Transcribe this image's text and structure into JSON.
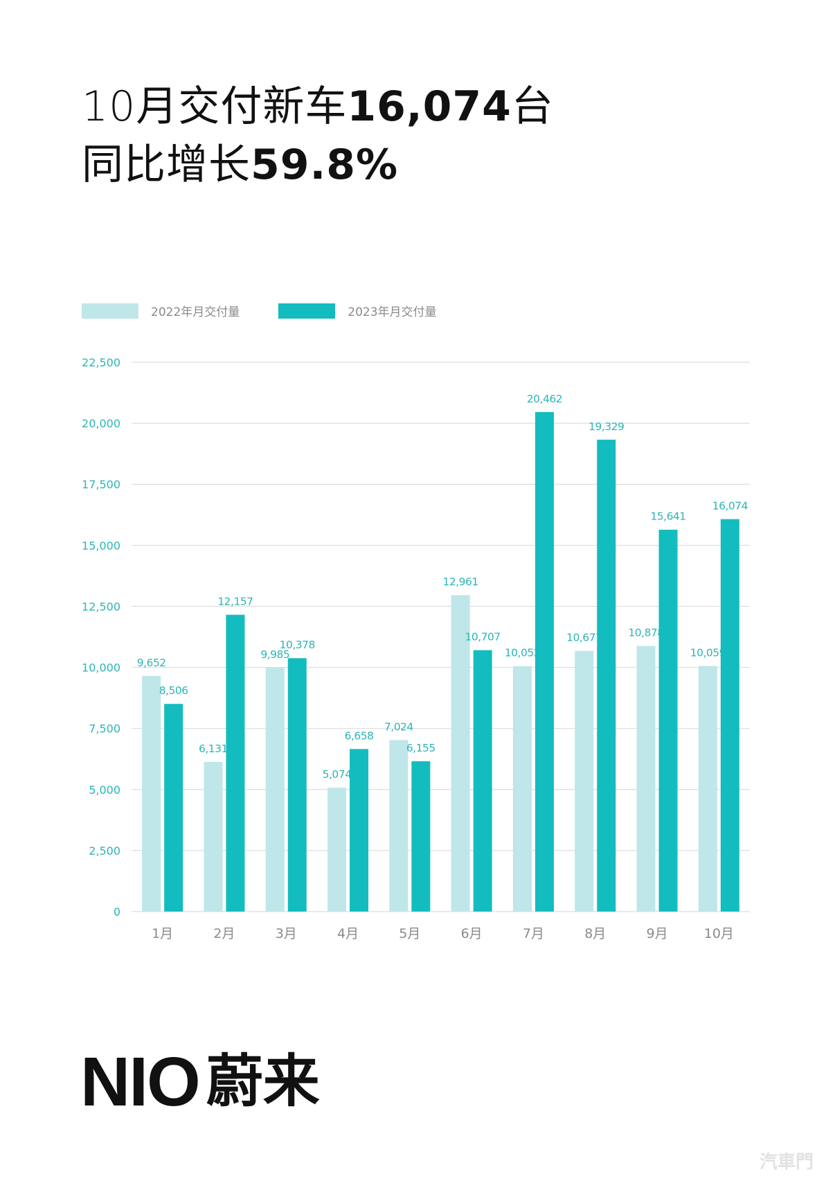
{
  "headline": {
    "line1_prefix": "10月交付新车",
    "line1_number": "16,074",
    "line1_suffix": "台",
    "line2_prefix": "同比增长",
    "line2_number": "59.8%"
  },
  "legend": [
    {
      "label": "2022年月交付量",
      "color": "#bfe6e8"
    },
    {
      "label": "2023年月交付量",
      "color": "#13bcbf"
    }
  ],
  "chart_data": {
    "type": "bar",
    "categories": [
      "1月",
      "2月",
      "3月",
      "4月",
      "5月",
      "6月",
      "7月",
      "8月",
      "9月",
      "10月"
    ],
    "series": [
      {
        "name": "2022年月交付量",
        "color": "#bfe6e8",
        "values": [
          9652,
          6131,
          9985,
          5074,
          7024,
          12961,
          10052,
          10677,
          10878,
          10059
        ],
        "labels": [
          "9,652",
          "6,131",
          "9,985",
          "5,074",
          "7,024",
          "12,961",
          "10,052",
          "10,677",
          "10,878",
          "10,059"
        ]
      },
      {
        "name": "2023年月交付量",
        "color": "#13bcbf",
        "values": [
          8506,
          12157,
          10378,
          6658,
          6155,
          10707,
          20462,
          19329,
          15641,
          16074
        ],
        "labels": [
          "8,506",
          "12,157",
          "10,378",
          "6,658",
          "6,155",
          "10,707",
          "20,462",
          "19,329",
          "15,641",
          "16,074"
        ]
      }
    ],
    "ylim": [
      0,
      22500
    ],
    "yticks": [
      0,
      2500,
      5000,
      7500,
      10000,
      12500,
      15000,
      17500,
      20000,
      22500
    ],
    "ytick_labels": [
      "0",
      "2,500",
      "5,000",
      "7,500",
      "10,000",
      "12,500",
      "15,000",
      "17,500",
      "20,000",
      "22,500"
    ],
    "grid": true,
    "legend_position": "top-left",
    "ytick_color": "#2bb5b5",
    "xtick_color": "#8a8a8a",
    "grid_color": "#dddddd"
  },
  "brand": {
    "latin": "NIO",
    "cjk": "蔚来"
  },
  "watermark": "汽車門"
}
